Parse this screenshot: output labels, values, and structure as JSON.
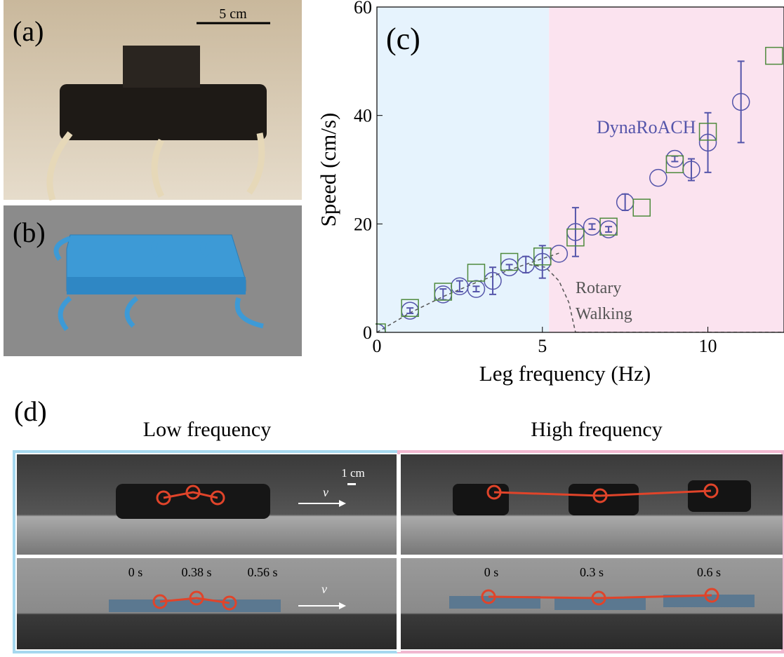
{
  "panels": {
    "a": {
      "label": "(a)",
      "scale_bar": "5 cm"
    },
    "b": {
      "label": "(b)"
    },
    "d": {
      "label": "(d)",
      "low": {
        "title": "Low frequency",
        "scale_bar": "1 cm",
        "velocity": "v",
        "times": [
          "0 s",
          "0.38 s",
          "0.56 s"
        ]
      },
      "high": {
        "title": "High frequency",
        "times": [
          "0 s",
          "0.3 s",
          "0.6 s"
        ]
      }
    }
  },
  "chart_data": {
    "type": "scatter",
    "label": "(c)",
    "xlabel": "Leg frequency (Hz)",
    "ylabel": "Speed (cm/s)",
    "xlim": [
      0,
      12.3
    ],
    "ylim": [
      0,
      60
    ],
    "xticks": [
      0,
      5,
      10
    ],
    "yticks": [
      0,
      20,
      40,
      60
    ],
    "grid": false,
    "regions": [
      {
        "from": 0,
        "to": 5.2,
        "color": "#e6f3fd"
      },
      {
        "from": 5.2,
        "to": 12.3,
        "color": "#fbe3ef"
      }
    ],
    "annotations": {
      "dynaroach": "DynaRoACH",
      "rotary": "Rotary",
      "walking": "Walking"
    },
    "series": [
      {
        "marker": "circle",
        "color": "#5555aa",
        "x": [
          0,
          1,
          2,
          2.5,
          3,
          3.5,
          4,
          4.5,
          5,
          5.5,
          6,
          6.5,
          7,
          7.5,
          8.5,
          9,
          9.5,
          10,
          11
        ],
        "values": [
          0,
          4,
          7,
          8.5,
          8,
          9.5,
          12,
          12.5,
          13,
          14.5,
          18.5,
          19.5,
          19,
          24,
          28.5,
          32,
          30,
          35,
          42.5
        ],
        "errors": [
          null,
          0.5,
          1,
          1,
          0.5,
          2.5,
          0.5,
          1.5,
          3,
          null,
          4.5,
          0.5,
          0.5,
          1.5,
          null,
          0.5,
          2,
          5.5,
          7.5
        ]
      },
      {
        "marker": "square",
        "color": "#4e8a3c",
        "x": [
          0,
          1,
          2,
          3,
          4,
          5,
          6,
          7,
          8,
          9,
          10,
          12
        ],
        "values": [
          0,
          4.5,
          7.5,
          11,
          13,
          14,
          17.5,
          19.5,
          23,
          31,
          37,
          51
        ]
      },
      {
        "marker": "dashed-line",
        "color": "#555",
        "x": [
          0,
          1,
          2,
          3,
          4,
          5,
          5.5
        ],
        "values": [
          0,
          3.6,
          6.6,
          9.2,
          11.5,
          13.6,
          14.6
        ]
      },
      {
        "marker": "dashed-line",
        "color": "#555",
        "x": [
          4.6,
          5.1,
          5.5,
          5.8,
          6
        ],
        "values": [
          12.5,
          12,
          9.5,
          5.5,
          0
        ]
      },
      {
        "marker": "dashed-line",
        "color": "#555",
        "x": [
          6,
          12.3
        ],
        "values": [
          0,
          0
        ]
      }
    ]
  }
}
